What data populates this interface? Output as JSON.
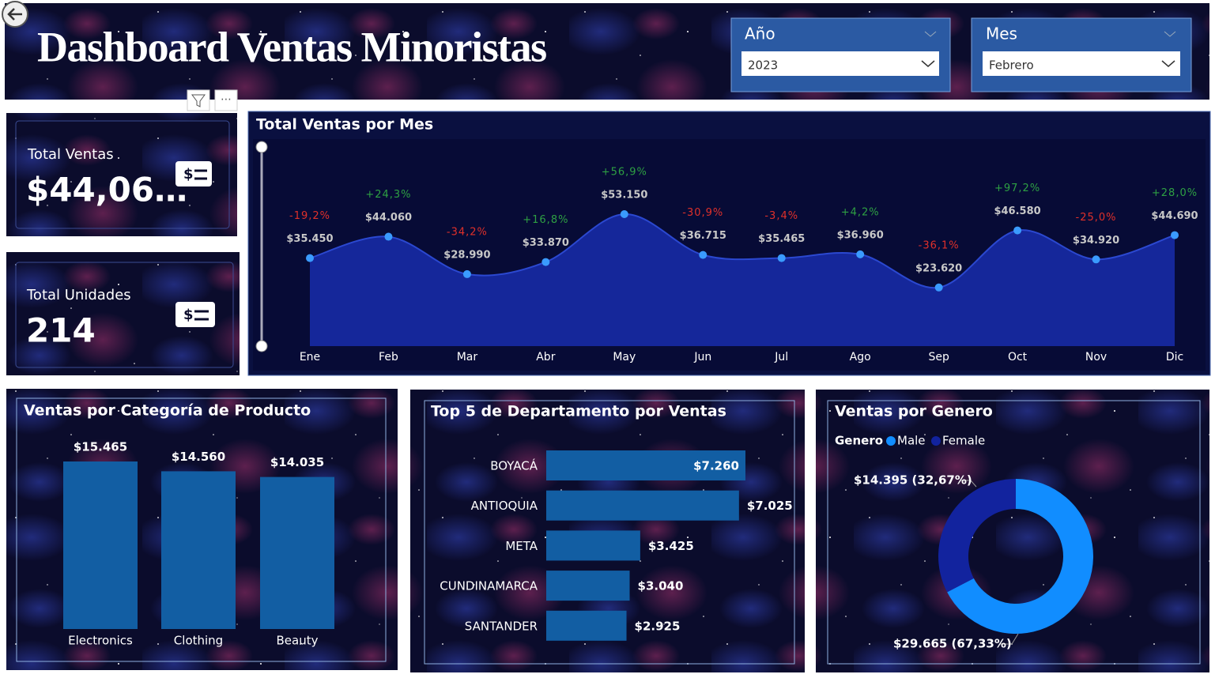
{
  "header": {
    "title": "Dashboard Ventas Minoristas"
  },
  "slicers": [
    {
      "label": "Año",
      "selected": "2023"
    },
    {
      "label": "Mes",
      "selected": "Febrero"
    }
  ],
  "cards": [
    {
      "label": "Total Ventas",
      "value": "$44,06…"
    },
    {
      "label": "Total Unidades",
      "value": "214"
    }
  ],
  "chart_data": [
    {
      "type": "area",
      "title": "Total Ventas por Mes",
      "categories": [
        "Ene",
        "Feb",
        "Mar",
        "Abr",
        "May",
        "Jun",
        "Jul",
        "Ago",
        "Sep",
        "Oct",
        "Nov",
        "Dic"
      ],
      "values": [
        35450,
        44060,
        28990,
        33870,
        53150,
        36715,
        35465,
        36960,
        23620,
        46580,
        34920,
        44690
      ],
      "value_labels": [
        "$35.450",
        "$44.060",
        "$28.990",
        "$33.870",
        "$53.150",
        "$36.715",
        "$35.465",
        "$36.960",
        "$23.620",
        "$46.580",
        "$34.920",
        "$44.690"
      ],
      "change_labels": [
        "-19,2%",
        "+24,3%",
        "-34,2%",
        "+16,8%",
        "+56,9%",
        "-30,9%",
        "-3,4%",
        "+4,2%",
        "-36,1%",
        "+97,2%",
        "-25,0%",
        "+28,0%"
      ],
      "color": "#3a9bff",
      "area_color": "#15279a"
    },
    {
      "type": "bar",
      "title": "Ventas por Categoría de Producto",
      "categories": [
        "Electronics",
        "Clothing",
        "Beauty"
      ],
      "values": [
        15465,
        14560,
        14035
      ],
      "value_labels": [
        "$15.465",
        "$14.560",
        "$14.035"
      ],
      "color": "#125ea3"
    },
    {
      "type": "hbar",
      "title": "Top 5 de Departamento por Ventas",
      "categories": [
        "BOYACÁ",
        "ANTIOQUIA",
        "META",
        "CUNDINAMARCA",
        "SANTANDER"
      ],
      "values": [
        7260,
        7025,
        3425,
        3040,
        2925
      ],
      "value_labels": [
        "$7.260",
        "$7.025",
        "$3.425",
        "$3.040",
        "$2.925"
      ],
      "color": "#125ea3"
    },
    {
      "type": "donut",
      "title": "Ventas por Genero",
      "legend_title": "Genero",
      "categories": [
        "Male",
        "Female"
      ],
      "values": [
        29665,
        14395
      ],
      "value_labels": [
        "$29.665 (67,33%)",
        "$14.395 (32,67%)"
      ],
      "colors": [
        "#118dff",
        "#12239e"
      ]
    }
  ]
}
